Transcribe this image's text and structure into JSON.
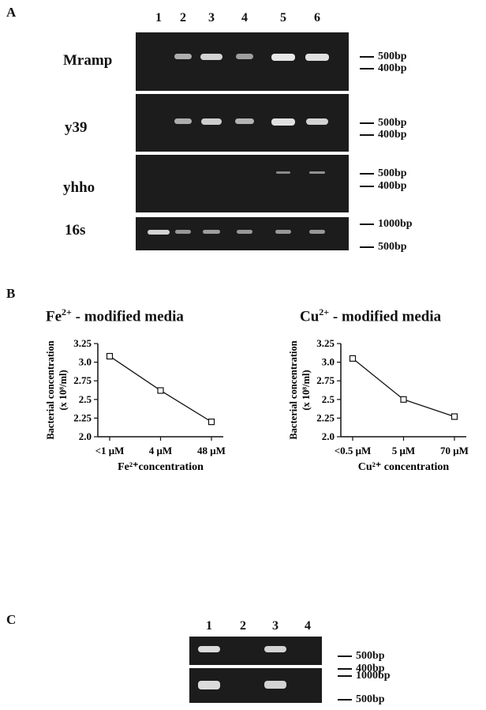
{
  "panelA": {
    "letter": "A",
    "lanes": [
      "1",
      "2",
      "3",
      "4",
      "5",
      "6"
    ],
    "gels": [
      {
        "label": "Mramp",
        "markers": [
          "500bp",
          "400bp"
        ],
        "bands": [
          {
            "lane": 2,
            "intensity": 0.55
          },
          {
            "lane": 3,
            "intensity": 0.85
          },
          {
            "lane": 4,
            "intensity": 0.45
          },
          {
            "lane": 5,
            "intensity": 1.0
          },
          {
            "lane": 6,
            "intensity": 0.95
          }
        ]
      },
      {
        "label": "y39",
        "markers": [
          "500bp",
          "400bp"
        ],
        "bands": [
          {
            "lane": 2,
            "intensity": 0.55
          },
          {
            "lane": 3,
            "intensity": 0.8
          },
          {
            "lane": 4,
            "intensity": 0.6
          },
          {
            "lane": 5,
            "intensity": 0.95
          },
          {
            "lane": 6,
            "intensity": 0.85
          }
        ]
      },
      {
        "label": "yhho",
        "markers": [
          "500bp",
          "400bp"
        ],
        "bands": [
          {
            "lane": 5,
            "intensity": 0.3
          },
          {
            "lane": 6,
            "intensity": 0.35
          }
        ]
      },
      {
        "label": "16s",
        "markers": [
          "1000bp",
          "500bp"
        ],
        "bands": [
          {
            "lane": 1,
            "intensity": 0.85
          },
          {
            "lane": 2,
            "intensity": 0.4
          },
          {
            "lane": 3,
            "intensity": 0.45
          },
          {
            "lane": 4,
            "intensity": 0.4
          },
          {
            "lane": 5,
            "intensity": 0.4
          },
          {
            "lane": 6,
            "intensity": 0.4
          }
        ]
      }
    ]
  },
  "panelB": {
    "letter": "B",
    "charts": [
      {
        "title_prefix": "Fe",
        "title_sup": "2+",
        "title_suffix": " - modified media"
      },
      {
        "title_prefix": "Cu",
        "title_sup": "2+",
        "title_suffix": " - modified media"
      }
    ]
  },
  "panelC": {
    "letter": "C",
    "lanes": [
      "1",
      "2",
      "3",
      "4"
    ],
    "gels": [
      {
        "markers": [
          "500bp",
          "400bp"
        ],
        "bands": [
          {
            "lane": 1,
            "intensity": 0.9
          },
          {
            "lane": 3,
            "intensity": 0.85
          }
        ]
      },
      {
        "markers": [
          "1000bp",
          "500bp"
        ],
        "bands": [
          {
            "lane": 1,
            "intensity": 0.9
          },
          {
            "lane": 3,
            "intensity": 0.85
          }
        ]
      }
    ]
  },
  "chart_data": [
    {
      "type": "line",
      "x": [
        "<1 μM",
        "4 μM",
        "48 μM"
      ],
      "values": [
        3.08,
        2.62,
        2.2
      ],
      "title": "Fe2+ - modified media",
      "ylabel_line1": "Bacterial  concentration",
      "ylabel_line2": "(x 10⁸/ml)",
      "xlabel": "Fe²⁺concentration",
      "ylim": [
        2.0,
        3.25
      ],
      "yticks": [
        "2.0",
        "2.25",
        "2.5",
        "2.75",
        "3.0",
        "3.25"
      ],
      "marker": "open-square",
      "grid": false
    },
    {
      "type": "line",
      "x": [
        "<0.5 μM",
        "5 μM",
        "70 μM"
      ],
      "values": [
        3.05,
        2.5,
        2.27
      ],
      "title": "Cu2+ - modified media",
      "ylabel_line1": "Bacterial  concentration",
      "ylabel_line2": "(x 10⁸/ml)",
      "xlabel": "Cu²⁺  concentration",
      "ylim": [
        2.0,
        3.25
      ],
      "yticks": [
        "2.0",
        "2.25",
        "2.5",
        "2.75",
        "3.0",
        "3.25"
      ],
      "marker": "open-square",
      "grid": false
    }
  ]
}
